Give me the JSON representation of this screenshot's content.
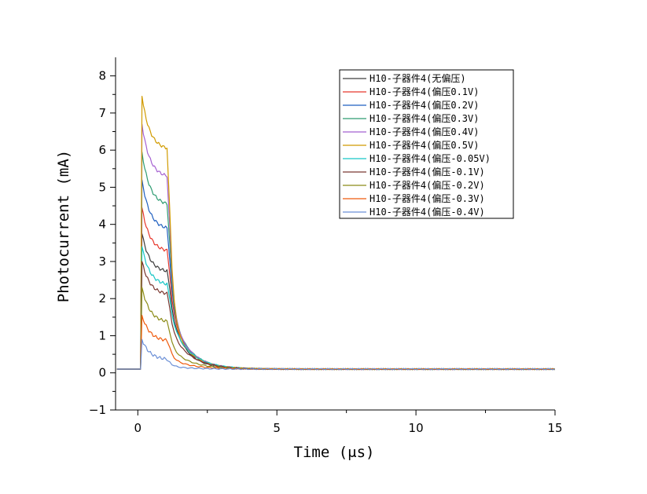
{
  "chart_data": {
    "type": "line",
    "xlabel": "Time (μs)",
    "ylabel": "Photocurrent (mA)",
    "xlim": [
      -0.8,
      15
    ],
    "ylim": [
      -1,
      8.5
    ],
    "xticks": [
      0,
      5,
      10,
      15
    ],
    "yticks": [
      -1,
      0,
      1,
      2,
      3,
      4,
      5,
      6,
      7,
      8
    ],
    "legend_position": "top-right",
    "grid": false,
    "series": [
      {
        "name": "H10-子器件4(无偏压)",
        "color": "#3d3d3d",
        "peak": 3.75,
        "plateau": 2.7
      },
      {
        "name": "H10-子器件4(偏压0.1V)",
        "color": "#e8372c",
        "peak": 4.45,
        "plateau": 3.25
      },
      {
        "name": "H10-子器件4(偏压0.2V)",
        "color": "#1f5fc0",
        "peak": 5.2,
        "plateau": 3.85
      },
      {
        "name": "H10-子器件4(偏压0.3V)",
        "color": "#2e9c72",
        "peak": 5.95,
        "plateau": 4.5
      },
      {
        "name": "H10-子器件4(偏压0.4V)",
        "color": "#a561d1",
        "peak": 6.7,
        "plateau": 5.25
      },
      {
        "name": "H10-子器件4(偏压0.5V)",
        "color": "#d19b00",
        "peak": 7.45,
        "plateau": 6.0
      },
      {
        "name": "H10-子器件4(偏压-0.05V)",
        "color": "#18c6c6",
        "peak": 3.4,
        "plateau": 2.35
      },
      {
        "name": "H10-子器件4(偏压-0.1V)",
        "color": "#7a3730",
        "peak": 3.0,
        "plateau": 2.1
      },
      {
        "name": "H10-子器件4(偏压-0.2V)",
        "color": "#8c8c18",
        "peak": 2.3,
        "plateau": 1.35
      },
      {
        "name": "H10-子器件4(偏压-0.3V)",
        "color": "#ef5a0c",
        "peak": 1.55,
        "plateau": 0.85
      },
      {
        "name": "H10-子器件4(偏压-0.4V)",
        "color": "#6b8fd6",
        "peak": 0.9,
        "plateau": 0.35
      }
    ],
    "baseline": 0.1,
    "pulse_on": 0.1,
    "pulse_off": 1.1
  }
}
